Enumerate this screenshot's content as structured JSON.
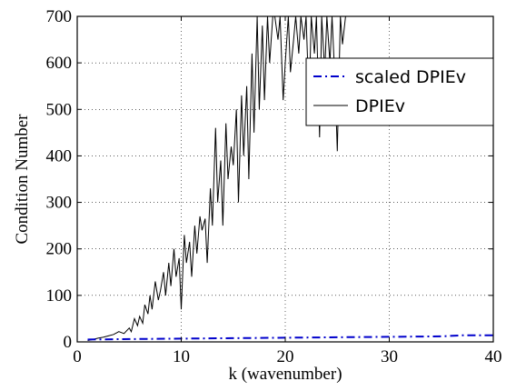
{
  "chart_data": {
    "type": "line",
    "xlabel": "k (wavenumber)",
    "ylabel": "Condition Number",
    "xlim": [
      0,
      40
    ],
    "ylim": [
      0,
      700
    ],
    "xticks": [
      "0",
      "10",
      "20",
      "30",
      "40"
    ],
    "yticks": [
      "0",
      "100",
      "200",
      "300",
      "400",
      "500",
      "600",
      "700"
    ],
    "grid": true,
    "legend_position": "upper-right",
    "series": [
      {
        "name": "scaled DPIEv",
        "color": "#0000cc",
        "style": "dash-dot",
        "x": [
          1,
          5,
          10,
          15,
          20,
          25,
          30,
          35,
          37,
          40
        ],
        "y": [
          5,
          6,
          7,
          8,
          9,
          10,
          11,
          12,
          14,
          14
        ]
      },
      {
        "name": "DPIEv",
        "color": "#000000",
        "style": "solid",
        "x": [
          1.0,
          1.5,
          2.0,
          2.5,
          3.0,
          3.5,
          4.0,
          4.5,
          5.0,
          5.2,
          5.5,
          5.8,
          6.0,
          6.3,
          6.5,
          6.8,
          7.0,
          7.2,
          7.5,
          7.8,
          8.0,
          8.3,
          8.5,
          8.8,
          9.0,
          9.3,
          9.5,
          9.8,
          10.0,
          10.3,
          10.5,
          10.8,
          11.0,
          11.3,
          11.5,
          11.8,
          12.0,
          12.3,
          12.5,
          12.8,
          13.0,
          13.3,
          13.5,
          13.8,
          14.0,
          14.3,
          14.5,
          14.8,
          15.0,
          15.3,
          15.5,
          15.8,
          16.0,
          16.3,
          16.5,
          16.8,
          17.0,
          17.3,
          17.5,
          17.8,
          18.0,
          18.3,
          18.5,
          18.8,
          19.0,
          19.3,
          19.5,
          19.8,
          20.0,
          20.3,
          20.5,
          20.8,
          21.0,
          21.3,
          21.5,
          21.8,
          22.0,
          22.3,
          22.5,
          22.8,
          23.0,
          23.3,
          23.5,
          23.8,
          24.0,
          24.3,
          24.5,
          24.8,
          25.0,
          25.3,
          25.5,
          25.8,
          26.0
        ],
        "y": [
          3,
          5,
          8,
          10,
          13,
          16,
          22,
          18,
          30,
          22,
          50,
          35,
          55,
          40,
          80,
          60,
          100,
          70,
          130,
          90,
          110,
          150,
          100,
          170,
          120,
          200,
          140,
          180,
          70,
          230,
          170,
          215,
          140,
          250,
          190,
          270,
          240,
          265,
          170,
          330,
          250,
          460,
          300,
          390,
          250,
          470,
          350,
          420,
          380,
          500,
          300,
          530,
          400,
          550,
          350,
          620,
          450,
          700,
          500,
          680,
          520,
          700,
          600,
          700,
          700,
          650,
          700,
          520,
          600,
          700,
          580,
          650,
          700,
          620,
          700,
          650,
          700,
          510,
          700,
          620,
          700,
          440,
          700,
          580,
          700,
          600,
          700,
          550,
          410,
          700,
          640,
          700,
          700
        ]
      }
    ]
  }
}
